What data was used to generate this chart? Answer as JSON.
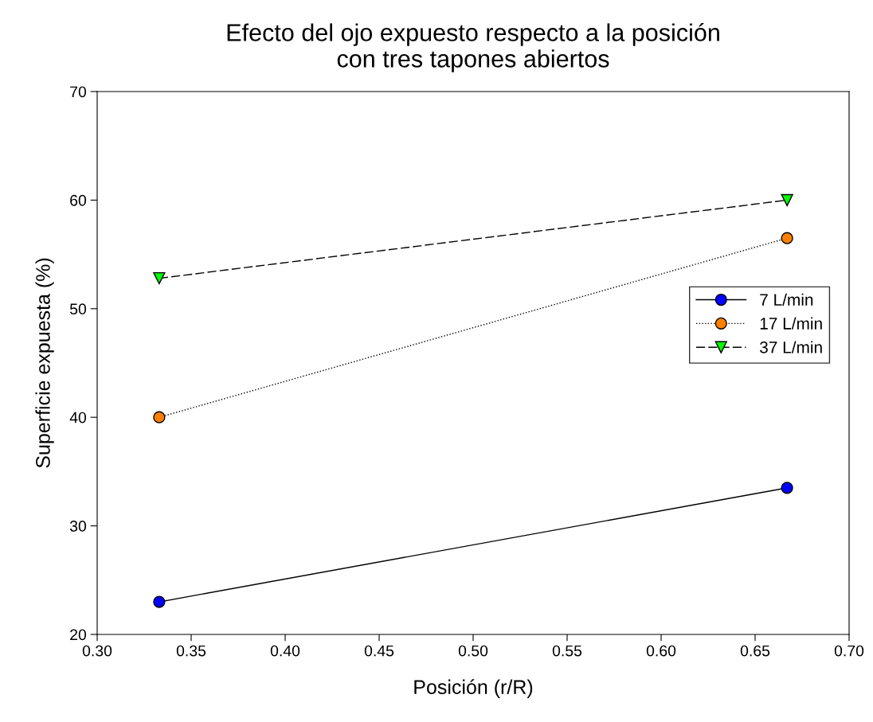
{
  "chart_data": {
    "type": "line",
    "title": "Efecto del ojo expuesto respecto a la posición\ncon tres tapones abiertos",
    "xlabel": "Posición (r/R)",
    "ylabel": "Superficie expuesta (%)",
    "x": [
      0.333,
      0.667
    ],
    "series": [
      {
        "name": "7 L/min",
        "color": "#0000ff",
        "values": [
          23,
          33.5
        ],
        "marker": "circle",
        "line_style": "solid"
      },
      {
        "name": "17 L/min",
        "color": "#ff8000",
        "values": [
          40,
          56.5
        ],
        "marker": "circle",
        "line_style": "dotted"
      },
      {
        "name": "37 L/min",
        "color": "#00ff00",
        "values": [
          52.8,
          60
        ],
        "marker": "triangle",
        "line_style": "dashed"
      }
    ],
    "xlim": [
      0.3,
      0.7
    ],
    "xticks": [
      {
        "value": 0.3,
        "label": "0.30"
      },
      {
        "value": 0.35,
        "label": "0.35"
      },
      {
        "value": 0.4,
        "label": "0.40"
      },
      {
        "value": 0.45,
        "label": "0.45"
      },
      {
        "value": 0.5,
        "label": "0.50"
      },
      {
        "value": 0.55,
        "label": "0.55"
      },
      {
        "value": 0.6,
        "label": "0.60"
      },
      {
        "value": 0.65,
        "label": "0.65"
      },
      {
        "value": 0.7,
        "label": "0.70"
      }
    ],
    "ylim": [
      20,
      70
    ],
    "yticks": [
      20,
      30,
      40,
      50,
      60,
      70
    ],
    "grid": false,
    "legend": "right"
  }
}
